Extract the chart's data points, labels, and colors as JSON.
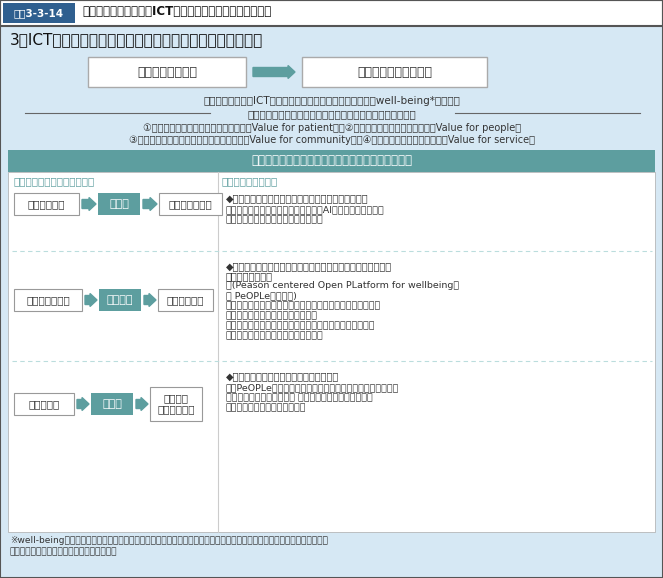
{
  "title_box_label": "図表3-3-14",
  "title_text": "保健医療分野におけるICT活用推進懇談会　提言（抜粋）",
  "section_title": "3．ICTを活用した「次世代型保健医療システム」の考え方",
  "box1_text": "価値不在の情報化",
  "box2_text": "患者・国民の価値主導",
  "basic_concept": "保健医療分野でのICT活用の「基本理念」：患者・国民の「well-being*」の実現",
  "value_axis_label": "「基本理念」を達成するために創出すべき「４つの価値軸」",
  "value1": "①患者本位の最適な保健医療サービス（Value for patient）／②国民全員の主体的な健康維持（Value for people）",
  "value2": "③持続可能な保健医療提供システムの実現（Value for community）／④医療技術開発と産業の振興（Value for service）",
  "paradigm_header": "「３つのパラダイムシフト」と「３つのインフラ」",
  "paradigm_label": "【３つのパラダイムシフト】",
  "infra_label": "【３つのインフラ】",
  "row1_left1": "集まるデータ",
  "row1_verb": "つくる",
  "row1_right1": "生み出すデータ",
  "row2_left1": "分散したデータ",
  "row2_verb": "つなげる",
  "row2_right1": "データの統合",
  "row3_left1": "たこつぼ化",
  "row3_verb": "ひらく",
  "row3_right1_line1": "安全かつ",
  "row3_right1_line2": "開かれた利用",
  "infra1_title": "◆次世代型ヘルスケアマネジメントシステム（仮称）",
  "infra1_body1": "・最新のエビデンスや診療データを、AIを用いてビッグデー",
  "infra1_body2": "　タ分析し、現場の最適な診療を支援",
  "infra2_title1": "◆患者・国民を中心に保健医療情報をどこでも活用できるオー",
  "infra2_title2": "　プンな情報基盤",
  "infra2_body1": "　(Peason centered Open PLatform for wellbeing：",
  "infra2_body2": "　 PeOPLe（仮称）)",
  "infra2_body3": "・個人の健康なときから疾病・介護段階までの基本的な保健",
  "infra2_body4": "　医療データを、その人中心に統合",
  "infra2_body5": "・保健医療専門職に共有され、個人自らも健康管理に活用",
  "infra2_body6": "　（全ての患者・国民が参加できる）",
  "infra3_title": "◆データ利活用プラットフォーム（仮称）",
  "infra3_body1": "・「PeOPLe」（仮称）や目的別データベースから、産官学の",
  "infra3_body2": "　多様なニーズに応じて、 保健医療データを目的別に収",
  "infra3_body3": "　集・加工（匿名化等）・提供",
  "footnote1": "※well-being：人々の様々な生き方に対応し、国民が健やかに暮らし、病気・ケガの際には最適な医療が受けられ、いきい",
  "footnote2": "　きと活躍し続けることができる状態・社会",
  "color_header_bg": "#2f5f8f",
  "color_header_text": "#ffffff",
  "color_main_bg": "#d6e8f4",
  "color_white": "#ffffff",
  "color_teal_header": "#5d9e9f",
  "color_teal_verb": "#5d9e9f",
  "color_dark_text": "#333333",
  "color_section_bg": "#e8f2f8",
  "color_infra_bg": "#f0f7f8"
}
